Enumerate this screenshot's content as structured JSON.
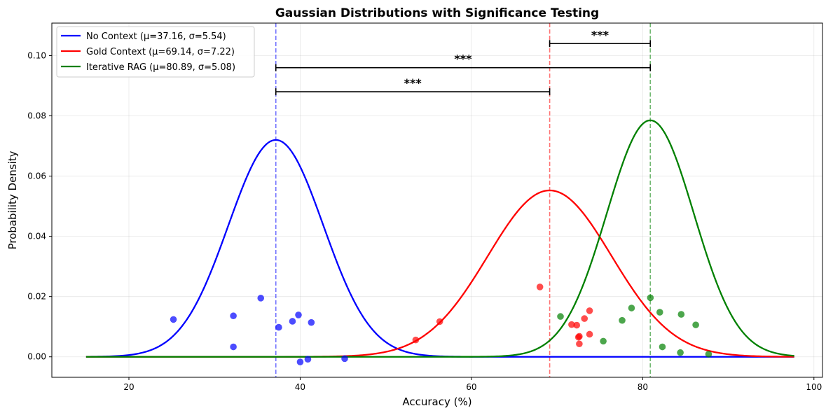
{
  "chart_data": {
    "type": "line",
    "title": "Gaussian Distributions with Significance Testing",
    "xlabel": "Accuracy (%)",
    "ylabel": "Probability Density",
    "xlim": [
      11,
      101
    ],
    "ylim": [
      -0.0068,
      0.1108
    ],
    "xticks": [
      20,
      40,
      60,
      80,
      100
    ],
    "yticks": [
      0.0,
      0.02,
      0.04,
      0.06,
      0.08,
      0.1
    ],
    "xtick_labels": [
      "20",
      "40",
      "60",
      "80",
      "100"
    ],
    "ytick_labels": [
      "0.00",
      "0.02",
      "0.04",
      "0.06",
      "0.08",
      "0.10"
    ],
    "grid": true,
    "legend_position": "top-left",
    "curve_range": [
      15,
      97.7
    ],
    "series": [
      {
        "name": "No Context (μ=37.16, σ=5.54)",
        "mu": 37.16,
        "sigma": 5.54,
        "color": "#0000ff",
        "points": [
          [
            25.2,
            0.0124
          ],
          [
            32.2,
            0.0136
          ],
          [
            32.2,
            0.0033
          ],
          [
            35.4,
            0.0195
          ],
          [
            37.5,
            0.0098
          ],
          [
            39.1,
            0.0118
          ],
          [
            39.8,
            0.0139
          ],
          [
            41.3,
            0.0114
          ],
          [
            40.0,
            -0.0017
          ],
          [
            40.9,
            -0.0008
          ],
          [
            45.2,
            -0.0006
          ]
        ]
      },
      {
        "name": "Gold Context (μ=69.14, σ=7.22)",
        "mu": 69.14,
        "sigma": 7.22,
        "color": "#ff0000",
        "points": [
          [
            53.5,
            0.0056
          ],
          [
            56.3,
            0.0117
          ],
          [
            68.0,
            0.0232
          ],
          [
            71.7,
            0.0107
          ],
          [
            72.3,
            0.0105
          ],
          [
            72.5,
            0.0065
          ],
          [
            72.6,
            0.0068
          ],
          [
            72.6,
            0.0043
          ],
          [
            73.2,
            0.0127
          ],
          [
            73.8,
            0.0153
          ],
          [
            73.8,
            0.0075
          ]
        ]
      },
      {
        "name": "Iterative RAG (μ=80.89, σ=5.08)",
        "mu": 80.89,
        "sigma": 5.08,
        "color": "#008000",
        "points": [
          [
            70.4,
            0.0134
          ],
          [
            75.4,
            0.0052
          ],
          [
            77.6,
            0.0121
          ],
          [
            78.7,
            0.0162
          ],
          [
            80.9,
            0.0196
          ],
          [
            82.0,
            0.0148
          ],
          [
            82.3,
            0.0033
          ],
          [
            84.5,
            0.0141
          ],
          [
            84.4,
            0.0014
          ],
          [
            86.2,
            0.0106
          ],
          [
            87.7,
            0.0009
          ]
        ]
      }
    ],
    "significance": [
      {
        "from": 37.16,
        "to": 69.14,
        "y": 0.088,
        "label": "***"
      },
      {
        "from": 37.16,
        "to": 80.89,
        "y": 0.096,
        "label": "***"
      },
      {
        "from": 69.14,
        "to": 80.89,
        "y": 0.104,
        "label": "***"
      }
    ]
  }
}
